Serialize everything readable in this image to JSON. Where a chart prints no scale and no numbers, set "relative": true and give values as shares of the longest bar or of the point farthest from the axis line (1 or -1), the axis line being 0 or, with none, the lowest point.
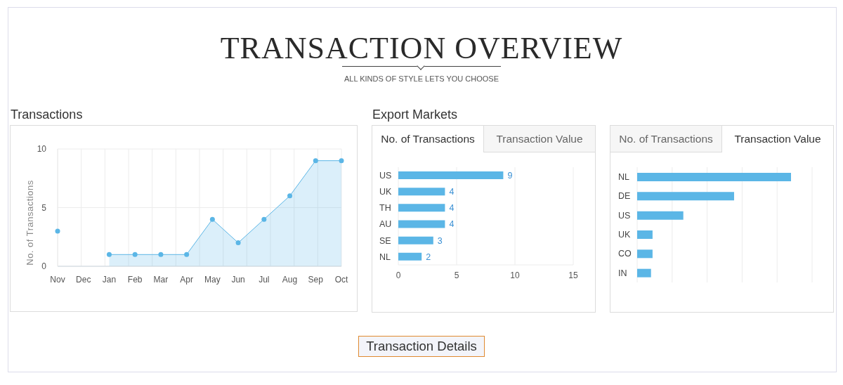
{
  "chart_data": [
    {
      "type": "other",
      "title": "TRANSACTION OVERVIEW",
      "subtitle": "ALL KINDS OF STYLE LETS YOU CHOOSE"
    },
    {
      "type": "area",
      "title": "Transactions",
      "ylabel": "No. of Transactions",
      "categories": [
        "Nov",
        "Dec",
        "Jan",
        "Feb",
        "Mar",
        "Apr",
        "May",
        "Jun",
        "Jul",
        "Aug",
        "Sep",
        "Oct"
      ],
      "series": [
        {
          "type": "scatter",
          "color": "#5bb6e6",
          "values": [
            3,
            null,
            null,
            null,
            null,
            null,
            null,
            null,
            null,
            null,
            null,
            null
          ]
        },
        {
          "color": "#5bb6e6",
          "values": [
            null,
            null,
            1,
            1,
            1,
            1,
            4,
            2,
            4,
            6,
            9,
            9
          ]
        }
      ],
      "ylim": [
        0,
        10
      ],
      "yticks": [
        0,
        5,
        10
      ],
      "grid": true,
      "marker": "circle"
    },
    {
      "type": "bar",
      "orientation": "horizontal",
      "title": "Export Markets",
      "annotations": [
        "No. of Transactions",
        "Transaction Value"
      ],
      "categories": [
        "US",
        "UK",
        "TH",
        "AU",
        "SE",
        "NL"
      ],
      "values": [
        9,
        4,
        4,
        4,
        3,
        2
      ],
      "color": "#5bb6e6",
      "xlim": [
        0,
        15
      ],
      "xticks": [
        0,
        5,
        10,
        15
      ],
      "grid": "x",
      "data_labels": true
    },
    {
      "type": "bar",
      "orientation": "horizontal",
      "relative": true,
      "annotations": [
        "No. of Transactions",
        "Transaction Value"
      ],
      "categories": [
        "NL",
        "DE",
        "US",
        "UK",
        "CO",
        "IN"
      ],
      "values": [
        1,
        0.63,
        0.3,
        0.1,
        0.1,
        0.09
      ],
      "color": "#5bb6e6",
      "grid": "x"
    },
    {
      "type": "other",
      "annotations": [
        "Transaction Details"
      ]
    }
  ]
}
